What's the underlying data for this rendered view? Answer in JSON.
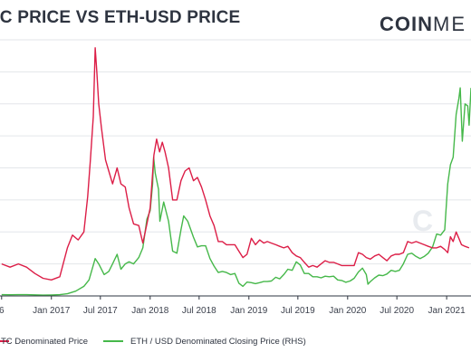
{
  "header": {
    "title": "TC PRICE VS ETH-USD PRICE",
    "brand_bold": "COIN",
    "brand_light": "ME"
  },
  "watermark": "C",
  "chart_data": {
    "type": "line",
    "title": "TC PRICE VS ETH-USD PRICE",
    "x_tick_labels": [
      "6",
      "Jan 2017",
      "Jul 2017",
      "Jan 2018",
      "Jul 2018",
      "Jan 2019",
      "Jul 2019",
      "Jan 2020",
      "Jul 2020",
      "Jan 2021"
    ],
    "x_tick_dates": [
      "2016-07-01",
      "2017-01-01",
      "2017-07-01",
      "2018-01-01",
      "2018-07-01",
      "2019-01-01",
      "2019-07-01",
      "2020-01-01",
      "2020-07-01",
      "2021-01-01"
    ],
    "x_range": [
      "2016-06-25",
      "2021-04-01"
    ],
    "left_axis": {
      "label": "",
      "range": [
        0,
        0.16
      ],
      "scale": "linear"
    },
    "right_axis": {
      "label": "",
      "range": [
        0,
        2400
      ],
      "scale": "linear"
    },
    "grid": {
      "horizontal": true,
      "vertical": false
    },
    "legend": {
      "position": "bottom"
    },
    "series": [
      {
        "name": "TC Denominated Price",
        "color": "#dc1e47",
        "axis": "left",
        "points": [
          [
            "2016-07-01",
            0.02
          ],
          [
            "2016-08-01",
            0.018
          ],
          [
            "2016-09-01",
            0.02
          ],
          [
            "2016-10-01",
            0.018
          ],
          [
            "2016-11-01",
            0.014
          ],
          [
            "2016-12-01",
            0.011
          ],
          [
            "2017-01-01",
            0.01
          ],
          [
            "2017-02-01",
            0.012
          ],
          [
            "2017-03-01",
            0.03
          ],
          [
            "2017-03-20",
            0.038
          ],
          [
            "2017-04-10",
            0.035
          ],
          [
            "2017-05-01",
            0.04
          ],
          [
            "2017-05-15",
            0.062
          ],
          [
            "2017-05-25",
            0.085
          ],
          [
            "2017-06-05",
            0.112
          ],
          [
            "2017-06-12",
            0.155
          ],
          [
            "2017-06-18",
            0.14
          ],
          [
            "2017-06-25",
            0.12
          ],
          [
            "2017-07-05",
            0.105
          ],
          [
            "2017-07-20",
            0.085
          ],
          [
            "2017-08-01",
            0.078
          ],
          [
            "2017-08-15",
            0.07
          ],
          [
            "2017-09-01",
            0.08
          ],
          [
            "2017-09-15",
            0.07
          ],
          [
            "2017-10-01",
            0.068
          ],
          [
            "2017-10-15",
            0.055
          ],
          [
            "2017-11-01",
            0.045
          ],
          [
            "2017-11-20",
            0.044
          ],
          [
            "2017-12-05",
            0.033
          ],
          [
            "2017-12-20",
            0.045
          ],
          [
            "2018-01-01",
            0.055
          ],
          [
            "2018-01-15",
            0.088
          ],
          [
            "2018-01-25",
            0.098
          ],
          [
            "2018-02-05",
            0.09
          ],
          [
            "2018-02-15",
            0.096
          ],
          [
            "2018-02-25",
            0.09
          ],
          [
            "2018-03-10",
            0.08
          ],
          [
            "2018-03-25",
            0.06
          ],
          [
            "2018-04-10",
            0.06
          ],
          [
            "2018-04-25",
            0.072
          ],
          [
            "2018-05-10",
            0.078
          ],
          [
            "2018-05-25",
            0.08
          ],
          [
            "2018-06-10",
            0.072
          ],
          [
            "2018-06-25",
            0.074
          ],
          [
            "2018-07-10",
            0.068
          ],
          [
            "2018-07-25",
            0.06
          ],
          [
            "2018-08-10",
            0.05
          ],
          [
            "2018-08-25",
            0.044
          ],
          [
            "2018-09-10",
            0.034
          ],
          [
            "2018-09-25",
            0.034
          ],
          [
            "2018-10-10",
            0.032
          ],
          [
            "2018-10-25",
            0.032
          ],
          [
            "2018-11-10",
            0.032
          ],
          [
            "2018-11-25",
            0.028
          ],
          [
            "2018-12-10",
            0.024
          ],
          [
            "2018-12-25",
            0.026
          ],
          [
            "2019-01-10",
            0.036
          ],
          [
            "2019-01-25",
            0.032
          ],
          [
            "2019-02-10",
            0.035
          ],
          [
            "2019-02-25",
            0.033
          ],
          [
            "2019-03-10",
            0.034
          ],
          [
            "2019-03-25",
            0.033
          ],
          [
            "2019-04-10",
            0.032
          ],
          [
            "2019-04-25",
            0.031
          ],
          [
            "2019-05-10",
            0.03
          ],
          [
            "2019-05-25",
            0.031
          ],
          [
            "2019-06-10",
            0.027
          ],
          [
            "2019-06-25",
            0.025
          ],
          [
            "2019-07-10",
            0.024
          ],
          [
            "2019-07-25",
            0.021
          ],
          [
            "2019-08-10",
            0.018
          ],
          [
            "2019-08-25",
            0.019
          ],
          [
            "2019-09-10",
            0.018
          ],
          [
            "2019-09-25",
            0.02
          ],
          [
            "2019-10-10",
            0.022
          ],
          [
            "2019-10-25",
            0.021
          ],
          [
            "2019-11-10",
            0.021
          ],
          [
            "2019-11-25",
            0.02
          ],
          [
            "2019-12-10",
            0.019
          ],
          [
            "2019-12-25",
            0.019
          ],
          [
            "2020-01-10",
            0.019
          ],
          [
            "2020-01-25",
            0.019
          ],
          [
            "2020-02-10",
            0.027
          ],
          [
            "2020-02-25",
            0.026
          ],
          [
            "2020-03-10",
            0.024
          ],
          [
            "2020-03-25",
            0.023
          ],
          [
            "2020-04-10",
            0.025
          ],
          [
            "2020-04-25",
            0.026
          ],
          [
            "2020-05-10",
            0.024
          ],
          [
            "2020-05-25",
            0.022
          ],
          [
            "2020-06-10",
            0.025
          ],
          [
            "2020-06-25",
            0.026
          ],
          [
            "2020-07-10",
            0.026
          ],
          [
            "2020-07-25",
            0.027
          ],
          [
            "2020-08-10",
            0.034
          ],
          [
            "2020-08-25",
            0.033
          ],
          [
            "2020-09-10",
            0.034
          ],
          [
            "2020-09-25",
            0.033
          ],
          [
            "2020-10-10",
            0.032
          ],
          [
            "2020-10-25",
            0.031
          ],
          [
            "2020-11-10",
            0.03
          ],
          [
            "2020-11-25",
            0.03
          ],
          [
            "2020-12-10",
            0.031
          ],
          [
            "2020-12-25",
            0.029
          ],
          [
            "2021-01-05",
            0.027
          ],
          [
            "2021-01-15",
            0.037
          ],
          [
            "2021-01-25",
            0.034
          ],
          [
            "2021-02-05",
            0.04
          ],
          [
            "2021-02-15",
            0.036
          ],
          [
            "2021-02-25",
            0.032
          ],
          [
            "2021-03-10",
            0.031
          ],
          [
            "2021-03-25",
            0.03
          ]
        ]
      },
      {
        "name": "ETH / USD Denominated Closing Price (RHS)",
        "color": "#46b84a",
        "axis": "right",
        "points": [
          [
            "2016-07-01",
            12
          ],
          [
            "2016-08-01",
            11
          ],
          [
            "2016-09-01",
            12
          ],
          [
            "2016-10-01",
            12
          ],
          [
            "2016-11-01",
            10
          ],
          [
            "2016-12-01",
            8
          ],
          [
            "2017-01-01",
            9
          ],
          [
            "2017-02-01",
            12
          ],
          [
            "2017-03-01",
            20
          ],
          [
            "2017-04-01",
            45
          ],
          [
            "2017-05-01",
            90
          ],
          [
            "2017-05-20",
            150
          ],
          [
            "2017-06-12",
            350
          ],
          [
            "2017-06-25",
            300
          ],
          [
            "2017-07-15",
            200
          ],
          [
            "2017-08-01",
            230
          ],
          [
            "2017-08-15",
            300
          ],
          [
            "2017-09-01",
            390
          ],
          [
            "2017-09-15",
            250
          ],
          [
            "2017-10-01",
            300
          ],
          [
            "2017-10-15",
            320
          ],
          [
            "2017-11-01",
            300
          ],
          [
            "2017-11-20",
            360
          ],
          [
            "2017-12-05",
            450
          ],
          [
            "2017-12-20",
            720
          ],
          [
            "2018-01-01",
            800
          ],
          [
            "2018-01-10",
            1050
          ],
          [
            "2018-01-14",
            1300
          ],
          [
            "2018-01-20",
            1150
          ],
          [
            "2018-02-01",
            1000
          ],
          [
            "2018-02-06",
            700
          ],
          [
            "2018-02-20",
            880
          ],
          [
            "2018-03-10",
            700
          ],
          [
            "2018-03-25",
            420
          ],
          [
            "2018-04-10",
            400
          ],
          [
            "2018-04-25",
            620
          ],
          [
            "2018-05-05",
            750
          ],
          [
            "2018-05-20",
            700
          ],
          [
            "2018-06-10",
            550
          ],
          [
            "2018-06-25",
            460
          ],
          [
            "2018-07-10",
            470
          ],
          [
            "2018-07-25",
            470
          ],
          [
            "2018-08-10",
            350
          ],
          [
            "2018-08-25",
            280
          ],
          [
            "2018-09-10",
            220
          ],
          [
            "2018-09-25",
            230
          ],
          [
            "2018-10-10",
            220
          ],
          [
            "2018-10-25",
            200
          ],
          [
            "2018-11-10",
            210
          ],
          [
            "2018-11-25",
            120
          ],
          [
            "2018-12-10",
            90
          ],
          [
            "2018-12-25",
            130
          ],
          [
            "2019-01-10",
            125
          ],
          [
            "2019-01-25",
            115
          ],
          [
            "2019-02-10",
            125
          ],
          [
            "2019-02-25",
            135
          ],
          [
            "2019-03-10",
            135
          ],
          [
            "2019-03-25",
            140
          ],
          [
            "2019-04-10",
            175
          ],
          [
            "2019-04-25",
            160
          ],
          [
            "2019-05-10",
            200
          ],
          [
            "2019-05-25",
            250
          ],
          [
            "2019-06-10",
            240
          ],
          [
            "2019-06-25",
            320
          ],
          [
            "2019-07-10",
            290
          ],
          [
            "2019-07-25",
            210
          ],
          [
            "2019-08-10",
            210
          ],
          [
            "2019-08-25",
            180
          ],
          [
            "2019-09-10",
            180
          ],
          [
            "2019-09-25",
            170
          ],
          [
            "2019-10-10",
            185
          ],
          [
            "2019-10-25",
            180
          ],
          [
            "2019-11-10",
            185
          ],
          [
            "2019-11-25",
            150
          ],
          [
            "2019-12-10",
            145
          ],
          [
            "2019-12-25",
            128
          ],
          [
            "2020-01-10",
            140
          ],
          [
            "2020-01-25",
            165
          ],
          [
            "2020-02-10",
            225
          ],
          [
            "2020-02-25",
            260
          ],
          [
            "2020-03-10",
            200
          ],
          [
            "2020-03-16",
            110
          ],
          [
            "2020-03-25",
            135
          ],
          [
            "2020-04-10",
            170
          ],
          [
            "2020-04-25",
            195
          ],
          [
            "2020-05-10",
            190
          ],
          [
            "2020-05-25",
            205
          ],
          [
            "2020-06-10",
            240
          ],
          [
            "2020-06-25",
            230
          ],
          [
            "2020-07-10",
            240
          ],
          [
            "2020-07-25",
            300
          ],
          [
            "2020-08-10",
            390
          ],
          [
            "2020-08-25",
            400
          ],
          [
            "2020-09-10",
            370
          ],
          [
            "2020-09-25",
            350
          ],
          [
            "2020-10-10",
            370
          ],
          [
            "2020-10-25",
            400
          ],
          [
            "2020-11-10",
            460
          ],
          [
            "2020-11-25",
            580
          ],
          [
            "2020-12-10",
            570
          ],
          [
            "2020-12-25",
            620
          ],
          [
            "2021-01-05",
            1050
          ],
          [
            "2021-01-15",
            1230
          ],
          [
            "2021-01-25",
            1300
          ],
          [
            "2021-02-05",
            1700
          ],
          [
            "2021-02-15",
            1850
          ],
          [
            "2021-02-20",
            1950
          ],
          [
            "2021-02-28",
            1450
          ],
          [
            "2021-03-10",
            1800
          ],
          [
            "2021-03-20",
            1780
          ],
          [
            "2021-03-25",
            1600
          ],
          [
            "2021-04-01",
            1950
          ]
        ]
      }
    ]
  }
}
